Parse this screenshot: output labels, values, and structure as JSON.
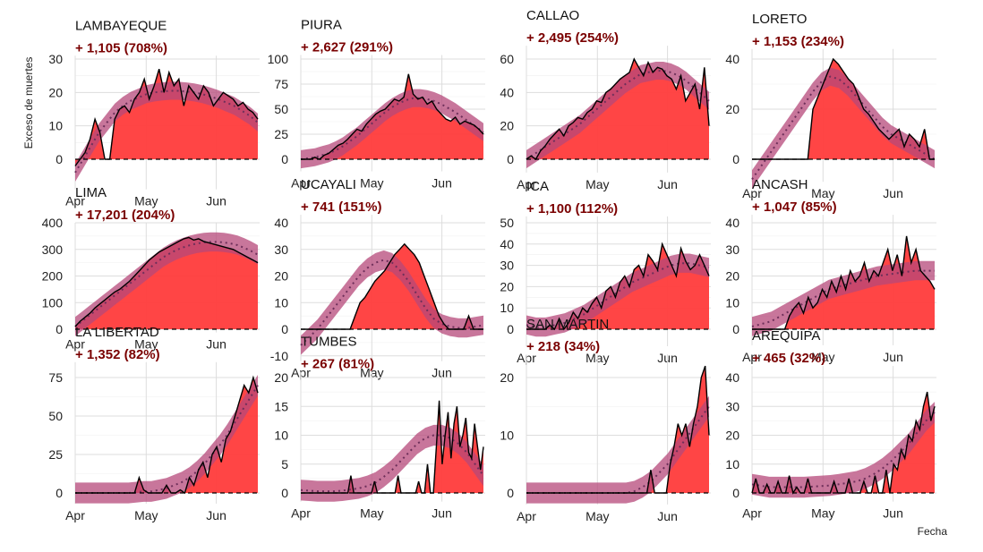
{
  "figure": {
    "ylabel": "Exceso de muertes",
    "xlabel": "Fecha",
    "colors": {
      "fill": "#ff3b3b",
      "smooth": "#b5487a",
      "line": "#000000",
      "subtitle": "#7a0000",
      "grid": "#dddddd"
    }
  },
  "chart_data": [
    {
      "type": "area",
      "title": "LAMBAYEQUE",
      "subtitle": "+ 1,105 (708%)",
      "x_ticks": [
        "Apr",
        "May",
        "Jun"
      ],
      "y_ticks": [
        0,
        10,
        20,
        30
      ],
      "ylim": [
        -9,
        31
      ],
      "values": [
        -2,
        0,
        2,
        6,
        12,
        8,
        0,
        0,
        12,
        15,
        16,
        14,
        18,
        20,
        24,
        18,
        22,
        27,
        20,
        26,
        22,
        24,
        16,
        22,
        20,
        18,
        22,
        20,
        16,
        18,
        20,
        19,
        18,
        16,
        17,
        15,
        14,
        12
      ],
      "smooth": [
        -4,
        0,
        4,
        8,
        11,
        14,
        16,
        17.5,
        18.5,
        19.5,
        20,
        20.3,
        20.5,
        20.5,
        20.3,
        20,
        19.5,
        18.8,
        18,
        17,
        16,
        14.5,
        13,
        11
      ]
    },
    {
      "type": "area",
      "title": "PIURA",
      "subtitle": "+ 2,627 (291%)",
      "x_ticks": [
        "Apr",
        "May",
        "Jun"
      ],
      "y_ticks": [
        0,
        25,
        50,
        75,
        100
      ],
      "ylim": [
        -12,
        104
      ],
      "values": [
        0,
        0,
        0,
        2,
        0,
        4,
        6,
        10,
        14,
        16,
        20,
        25,
        30,
        28,
        35,
        40,
        45,
        48,
        50,
        55,
        60,
        58,
        62,
        85,
        65,
        60,
        62,
        55,
        58,
        50,
        45,
        40,
        38,
        42,
        35,
        38,
        36,
        34,
        30,
        25
      ],
      "smooth": [
        0,
        1,
        2,
        4,
        6,
        9,
        13,
        18,
        23,
        29,
        35,
        41,
        47,
        52,
        56,
        59,
        61,
        61,
        60,
        58,
        55,
        51,
        47,
        42,
        37,
        32,
        27
      ]
    },
    {
      "type": "area",
      "title": "CALLAO",
      "subtitle": "+ 2,495 (254%)",
      "x_ticks": [
        "Apr",
        "May",
        "Jun"
      ],
      "y_ticks": [
        0,
        20,
        40,
        60
      ],
      "ylim": [
        -8,
        68
      ],
      "values": [
        0,
        2,
        0,
        5,
        8,
        12,
        15,
        18,
        14,
        20,
        22,
        25,
        24,
        28,
        30,
        35,
        34,
        40,
        42,
        45,
        48,
        50,
        52,
        60,
        55,
        50,
        58,
        52,
        55,
        54,
        50,
        48,
        42,
        50,
        35,
        40,
        45,
        30,
        55,
        20
      ],
      "smooth": [
        0,
        3,
        6,
        9,
        12,
        15,
        18,
        21,
        25,
        29,
        33,
        37,
        41,
        45,
        48,
        51,
        52,
        53,
        53,
        52,
        50,
        47,
        43,
        39,
        35
      ]
    },
    {
      "type": "area",
      "title": "LORETO",
      "subtitle": "+ 1,153 (234%)",
      "x_ticks": [
        "Apr",
        "May",
        "Jun"
      ],
      "y_ticks": [
        0,
        20,
        40
      ],
      "ylim": [
        -9,
        44
      ],
      "values": [
        0,
        0,
        0,
        0,
        0,
        0,
        0,
        0,
        0,
        0,
        0,
        0,
        20,
        25,
        30,
        35,
        40,
        38,
        35,
        32,
        30,
        25,
        20,
        18,
        15,
        12,
        10,
        8,
        10,
        12,
        5,
        10,
        8,
        5,
        12,
        0,
        0
      ],
      "smooth": [
        -8,
        -3,
        2,
        7,
        12,
        17,
        22,
        27,
        31,
        33,
        32,
        29,
        25,
        21,
        17,
        13,
        10,
        8,
        6,
        4,
        2,
        0
      ]
    },
    {
      "type": "area",
      "title": "LIMA",
      "subtitle": "+ 17,201 (204%)",
      "x_ticks": [
        "Apr",
        "May",
        "Jun"
      ],
      "y_ticks": [
        0,
        100,
        200,
        300,
        400
      ],
      "ylim": [
        -12,
        400
      ],
      "values": [
        10,
        30,
        45,
        60,
        80,
        95,
        110,
        125,
        140,
        150,
        165,
        180,
        200,
        220,
        240,
        260,
        275,
        290,
        300,
        310,
        320,
        330,
        340,
        345,
        335,
        340,
        330,
        325,
        320,
        315,
        310,
        305,
        300,
        290,
        280,
        270,
        260,
        250
      ],
      "smooth": [
        10,
        30,
        50,
        70,
        90,
        110,
        130,
        150,
        170,
        190,
        210,
        230,
        250,
        270,
        285,
        298,
        308,
        316,
        322,
        326,
        328,
        328,
        326,
        322,
        316,
        306,
        294,
        280
      ]
    },
    {
      "type": "area",
      "title": "UCAYALI",
      "subtitle": "+ 741 (151%)",
      "x_ticks": [
        "Apr",
        "May",
        "Jun"
      ],
      "y_ticks": [
        -10,
        0,
        10,
        20,
        30,
        40
      ],
      "ylim": [
        -12,
        43
      ],
      "values": [
        0,
        0,
        0,
        0,
        0,
        0,
        0,
        0,
        0,
        0,
        0,
        5,
        10,
        12,
        15,
        18,
        20,
        22,
        25,
        28,
        30,
        32,
        30,
        28,
        25,
        20,
        15,
        10,
        5,
        2,
        0,
        0,
        0,
        0,
        5,
        0,
        0,
        0
      ],
      "smooth": [
        -6,
        -3,
        0,
        4,
        8,
        12,
        16,
        20,
        23,
        25,
        26,
        25,
        22,
        18,
        13,
        8,
        4,
        2,
        1,
        0.5,
        0.5,
        1,
        1.5
      ]
    },
    {
      "type": "area",
      "title": "ICA",
      "subtitle": "+ 1,100 (112%)",
      "x_ticks": [
        "Apr",
        "May",
        "Jun"
      ],
      "y_ticks": [
        0,
        10,
        20,
        30,
        40,
        50
      ],
      "ylim": [
        -8,
        53
      ],
      "values": [
        0,
        0,
        0,
        0,
        0,
        2,
        0,
        5,
        0,
        3,
        8,
        5,
        10,
        8,
        12,
        15,
        10,
        18,
        20,
        15,
        22,
        25,
        20,
        28,
        30,
        25,
        35,
        32,
        28,
        40,
        35,
        30,
        25,
        38,
        32,
        28,
        30,
        35,
        30,
        25
      ],
      "smooth": [
        2,
        1,
        1,
        2,
        3,
        5,
        7,
        10,
        13,
        16,
        19,
        22,
        24,
        26,
        28,
        30,
        31,
        31,
        30,
        29
      ]
    },
    {
      "type": "area",
      "title": "ANCASH",
      "subtitle": "+ 1,047 (85%)",
      "x_ticks": [
        "Apr",
        "May",
        "Jun"
      ],
      "y_ticks": [
        0,
        10,
        20,
        30,
        40
      ],
      "ylim": [
        -6,
        43
      ],
      "values": [
        0,
        0,
        0,
        0,
        0,
        0,
        0,
        0,
        5,
        8,
        10,
        6,
        12,
        8,
        10,
        15,
        12,
        18,
        14,
        20,
        15,
        22,
        18,
        20,
        25,
        18,
        22,
        20,
        25,
        30,
        22,
        28,
        20,
        35,
        25,
        30,
        22,
        20,
        18,
        15
      ],
      "smooth": [
        1,
        2,
        3,
        5,
        7,
        9,
        11,
        13,
        15,
        16,
        17,
        18,
        19,
        20,
        20.5,
        21,
        21.5,
        22,
        22,
        22
      ]
    },
    {
      "type": "area",
      "title": "LA LIBERTAD",
      "subtitle": "+ 1,352 (82%)",
      "x_ticks": [
        "Apr",
        "May",
        "Jun"
      ],
      "y_ticks": [
        0,
        25,
        50,
        75
      ],
      "ylim": [
        -7,
        85
      ],
      "values": [
        0,
        0,
        0,
        0,
        0,
        0,
        0,
        0,
        0,
        0,
        0,
        0,
        0,
        0,
        10,
        2,
        0,
        0,
        0,
        0,
        5,
        0,
        0,
        2,
        0,
        10,
        5,
        15,
        20,
        10,
        25,
        30,
        20,
        35,
        40,
        50,
        60,
        70,
        65,
        75,
        65
      ],
      "smooth": [
        0,
        0,
        0,
        0,
        0,
        0,
        0,
        0,
        0.5,
        1,
        1,
        2,
        3,
        5,
        7,
        10,
        14,
        19,
        25,
        31,
        38,
        46,
        54,
        62,
        70
      ]
    },
    {
      "type": "area",
      "title": "TUMBES",
      "subtitle": "+ 267 (81%)",
      "x_ticks": [
        "Apr",
        "May",
        "Jun"
      ],
      "y_ticks": [
        0,
        5,
        10,
        15,
        20
      ],
      "ylim": [
        -1.5,
        21
      ],
      "values": [
        0,
        0,
        0,
        0,
        0,
        0,
        0,
        0,
        0,
        0,
        0,
        0,
        0,
        0,
        0,
        0,
        0,
        3,
        0,
        0,
        0,
        0,
        0,
        0,
        0,
        2,
        0,
        0,
        0,
        0,
        0,
        0,
        0,
        3,
        0,
        0,
        0,
        0,
        0,
        0,
        2,
        0,
        0,
        5,
        0,
        0,
        8,
        16,
        5,
        10,
        14,
        6,
        12,
        15,
        8,
        10,
        13,
        7,
        6,
        12,
        8,
        4,
        8
      ],
      "smooth": [
        0.5,
        0.4,
        0.3,
        0.3,
        0.3,
        0.4,
        0.6,
        0.8,
        1.2,
        1.8,
        2.8,
        4,
        5.5,
        7,
        8.5,
        9.5,
        10,
        10,
        9.5,
        8.5,
        7,
        5,
        3
      ]
    },
    {
      "type": "area",
      "title": "SAN MARTIN",
      "subtitle": "+ 218 (34%)",
      "x_ticks": [
        "Apr",
        "May",
        "Jun"
      ],
      "y_ticks": [
        0,
        10,
        20
      ],
      "ylim": [
        -2,
        24
      ],
      "values": [
        0,
        0,
        0,
        0,
        0,
        0,
        0,
        0,
        0,
        0,
        0,
        0,
        0,
        0,
        0,
        0,
        0,
        0,
        0,
        0,
        0,
        0,
        0,
        0,
        0,
        0,
        0,
        0,
        0,
        0,
        0,
        0,
        4,
        0,
        0,
        0,
        0,
        5,
        8,
        12,
        10,
        12,
        8,
        12,
        15,
        20,
        22,
        10
      ],
      "smooth": [
        0,
        0,
        0,
        0,
        0,
        0,
        0,
        0,
        0,
        0,
        0,
        0,
        0,
        0.3,
        1,
        2,
        3.5,
        5,
        7,
        9,
        11,
        13,
        15
      ]
    },
    {
      "type": "area",
      "title": "AREQUIPA",
      "subtitle": "+ 465 (32%)",
      "x_ticks": [
        "Apr",
        "May",
        "Jun"
      ],
      "y_ticks": [
        0,
        10,
        20,
        30,
        40
      ],
      "ylim": [
        -3,
        44
      ],
      "values": [
        0,
        5,
        0,
        0,
        3,
        0,
        0,
        4,
        0,
        0,
        6,
        0,
        2,
        0,
        0,
        5,
        0,
        0,
        0,
        0,
        0,
        0,
        4,
        0,
        0,
        0,
        5,
        0,
        0,
        0,
        4,
        0,
        0,
        6,
        0,
        0,
        8,
        0,
        10,
        8,
        15,
        12,
        20,
        18,
        25,
        22,
        30,
        35,
        25,
        30
      ],
      "smooth": [
        3,
        2.5,
        2,
        2,
        2,
        2,
        2,
        2.2,
        2.4,
        2.6,
        3,
        3.5,
        4,
        5,
        6.5,
        8.5,
        11,
        14,
        17,
        21,
        25,
        28
      ]
    }
  ]
}
